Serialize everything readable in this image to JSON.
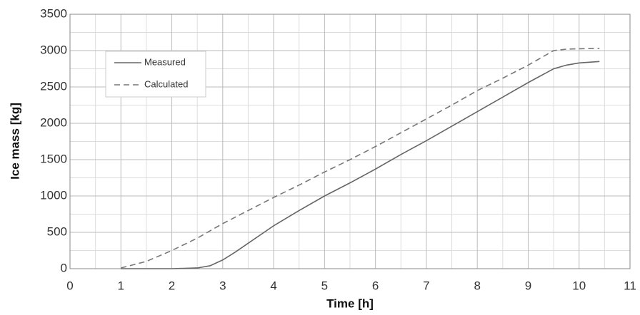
{
  "chart_data": {
    "type": "line",
    "xlabel": "Time [h]",
    "ylabel": "Ice mass [kg]",
    "x": [
      1,
      1.5,
      2,
      2.5,
      2.75,
      3,
      3.25,
      3.5,
      4,
      4.5,
      5,
      5.5,
      6,
      6.5,
      7,
      7.5,
      8,
      8.5,
      9,
      9.5,
      9.75,
      10,
      10.4
    ],
    "series": [
      {
        "name": "Measured",
        "color": "#666666",
        "dash": "solid",
        "values": [
          0,
          0,
          0,
          10,
          40,
          120,
          230,
          350,
          590,
          800,
          1000,
          1180,
          1370,
          1570,
          1760,
          1960,
          2160,
          2360,
          2560,
          2750,
          2800,
          2830,
          2850
        ]
      },
      {
        "name": "Calculated",
        "color": "#777777",
        "dash": "dashed",
        "values": [
          10,
          100,
          250,
          420,
          520,
          620,
          710,
          800,
          980,
          1150,
          1330,
          1500,
          1680,
          1870,
          2060,
          2250,
          2450,
          2620,
          2800,
          3000,
          3020,
          3025,
          3030
        ]
      }
    ],
    "xlim": [
      0,
      11
    ],
    "xticks": [
      0,
      1,
      2,
      3,
      4,
      5,
      6,
      7,
      8,
      9,
      10,
      11
    ],
    "ylim": [
      0,
      3500
    ],
    "yticks": [
      0,
      500,
      1000,
      1500,
      2000,
      2500,
      3000,
      3500
    ],
    "minor_xticks": [
      0.5,
      1.5,
      2.5,
      3.5,
      4.5,
      5.5,
      6.5,
      7.5,
      8.5,
      9.5,
      10.5
    ],
    "minor_yticks": [
      250,
      750,
      1250,
      1750,
      2250,
      2750,
      3250
    ],
    "grid": true,
    "legend": "upper-left"
  }
}
